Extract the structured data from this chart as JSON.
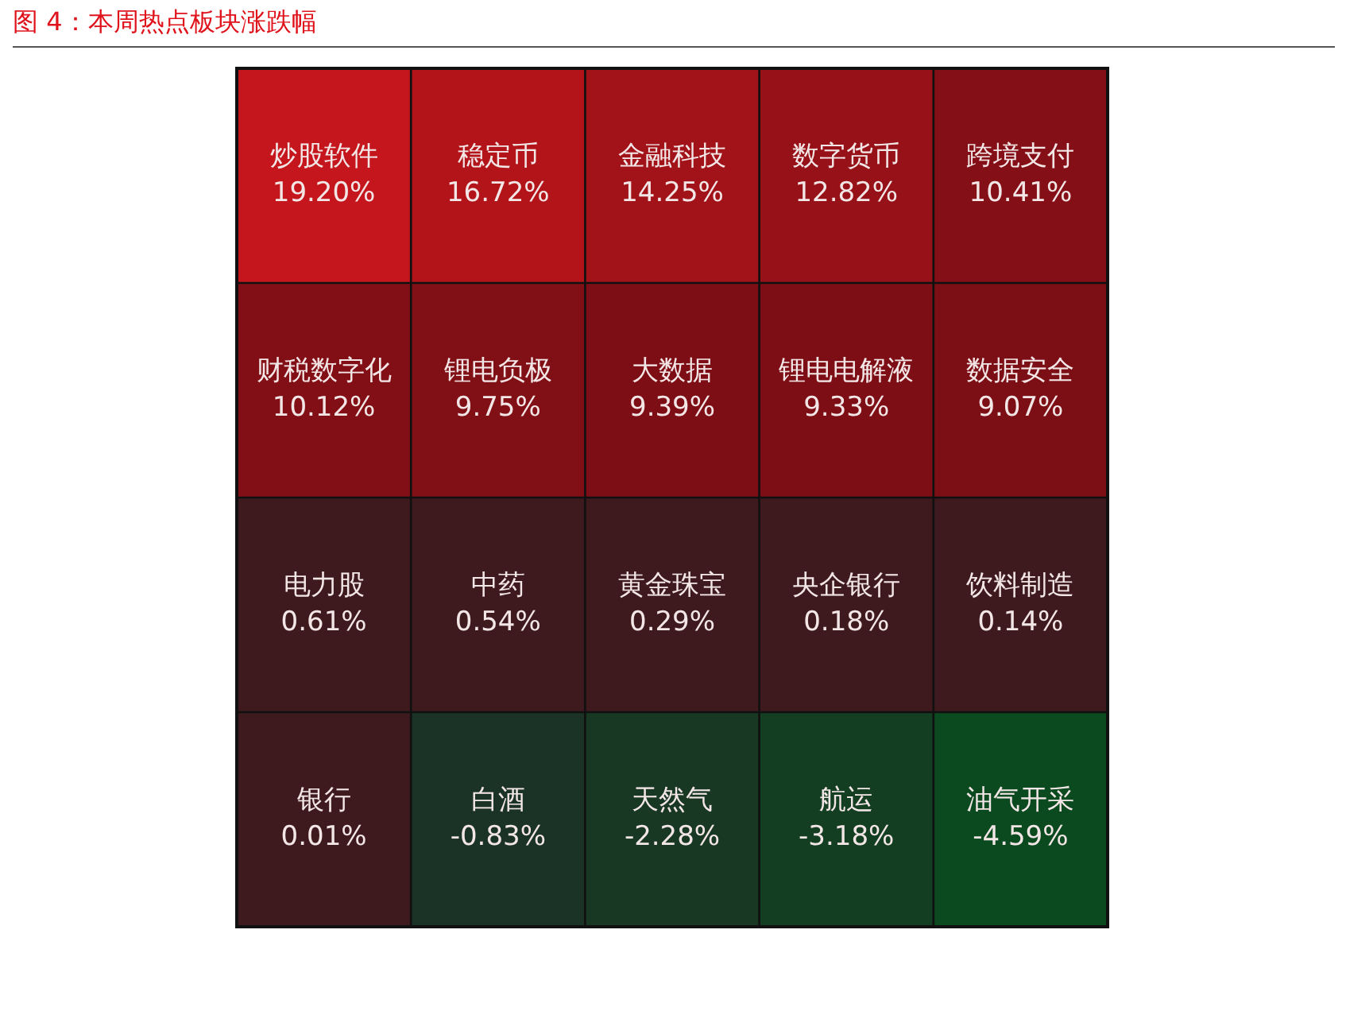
{
  "chart_data": {
    "type": "other",
    "title": "图 4：本周热点板块涨跌幅",
    "categories": [
      "炒股软件",
      "稳定币",
      "金融科技",
      "数字货币",
      "跨境支付",
      "财税数字化",
      "锂电负极",
      "大数据",
      "锂电电解液",
      "数据安全",
      "电力股",
      "中药",
      "黄金珠宝",
      "央企银行",
      "饮料制造",
      "银行",
      "白酒",
      "天然气",
      "航运",
      "油气开采"
    ],
    "values": [
      19.2,
      16.72,
      14.25,
      12.82,
      10.41,
      10.12,
      9.75,
      9.39,
      9.33,
      9.07,
      0.61,
      0.54,
      0.29,
      0.18,
      0.14,
      0.01,
      -0.83,
      -2.28,
      -3.18,
      -4.59
    ],
    "value_labels": [
      "19.20%",
      "16.72%",
      "14.25%",
      "12.82%",
      "10.41%",
      "10.12%",
      "9.75%",
      "9.39%",
      "9.33%",
      "9.07%",
      "0.61%",
      "0.54%",
      "0.29%",
      "0.18%",
      "0.14%",
      "0.01%",
      "-0.83%",
      "-2.28%",
      "-3.18%",
      "-4.59%"
    ]
  }
}
